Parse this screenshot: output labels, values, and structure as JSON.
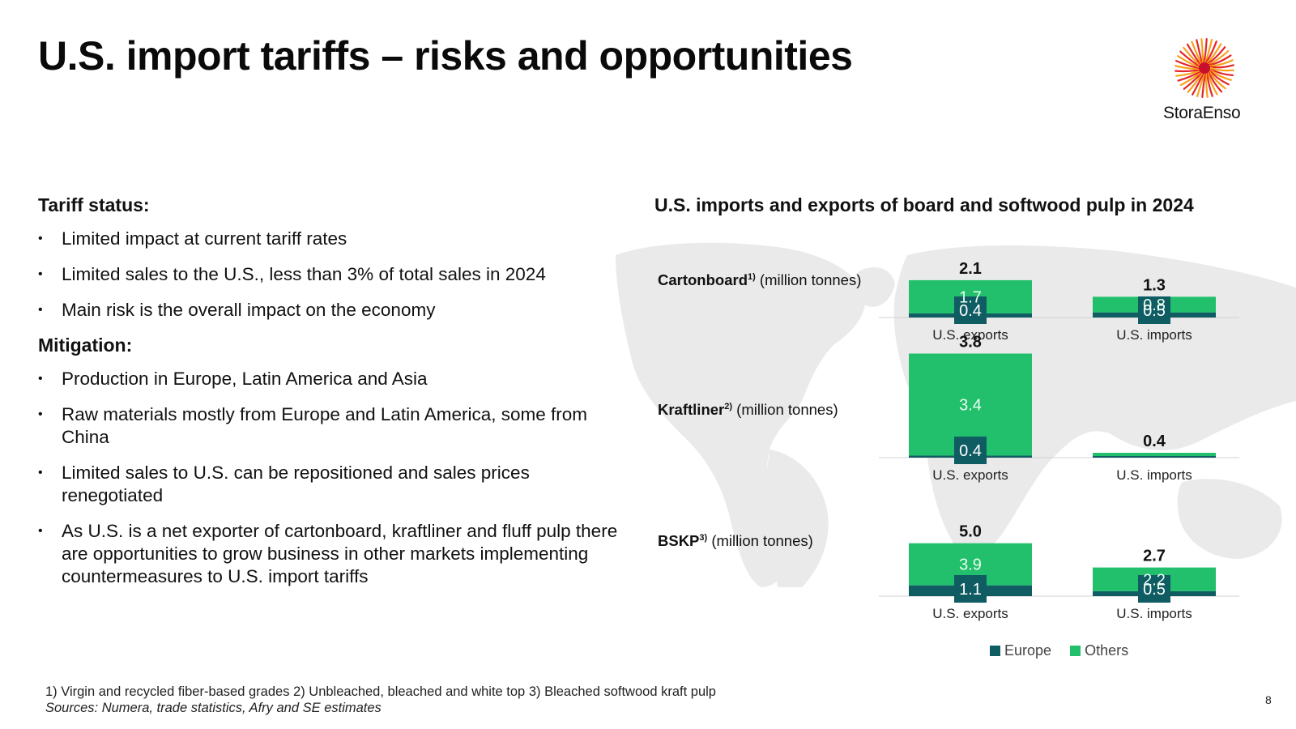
{
  "title": "U.S. import tariffs – risks and opportunities",
  "logo": {
    "text": "StoraEnso"
  },
  "left": {
    "heading1": "Tariff status:",
    "bullets1": [
      "Limited impact at current tariff rates",
      "Limited sales to the U.S., less than 3% of total sales in 2024",
      "Main risk is the overall impact on the economy"
    ],
    "heading2": "Mitigation:",
    "bullets2": [
      "Production in Europe, Latin America and Asia",
      "Raw materials mostly from Europe and Latin America, some from China",
      "Limited sales to U.S. can be repositioned and sales prices renegotiated",
      "As U.S. is a net exporter of cartonboard, kraftliner and fluff pulp there are opportunities to grow business in other markets implementing countermeasures to U.S. import tariffs"
    ]
  },
  "chart": {
    "title": "U.S. imports and exports of board and softwood pulp in 2024",
    "unit": "(million tonnes)",
    "rows": [
      {
        "name": "Cartonboard",
        "sup": "1)"
      },
      {
        "name": "Kraftliner",
        "sup": "2)"
      },
      {
        "name": "BSKP",
        "sup": "3)"
      }
    ],
    "legend": {
      "europe": "Europe",
      "others": "Others"
    },
    "colors": {
      "europe": "#0f5c63",
      "others": "#22c06c",
      "map": "#e8e8e8"
    }
  },
  "chart_data": {
    "type": "bar",
    "stacked": true,
    "title": "U.S. imports and exports of board and softwood pulp in 2024",
    "unit": "million tonnes",
    "groups": [
      "Cartonboard",
      "Kraftliner",
      "BSKP"
    ],
    "categories": [
      "U.S. exports",
      "U.S. imports"
    ],
    "series": [
      {
        "name": "Europe",
        "values": [
          [
            0.4,
            0.5
          ],
          [
            0.4,
            null
          ],
          [
            1.1,
            0.5
          ]
        ]
      },
      {
        "name": "Others",
        "values": [
          [
            1.7,
            0.8
          ],
          [
            3.4,
            null
          ],
          [
            3.9,
            2.2
          ]
        ]
      }
    ],
    "totals": [
      [
        2.1,
        1.3
      ],
      [
        3.8,
        0.4
      ],
      [
        5.0,
        2.7
      ]
    ]
  },
  "footnote": "1) Virgin and recycled fiber-based grades 2) Unbleached, bleached and white top  3) Bleached softwood kraft pulp",
  "sources": "Sources: Numera, trade statistics, Afry and SE estimates",
  "page_number": "8"
}
